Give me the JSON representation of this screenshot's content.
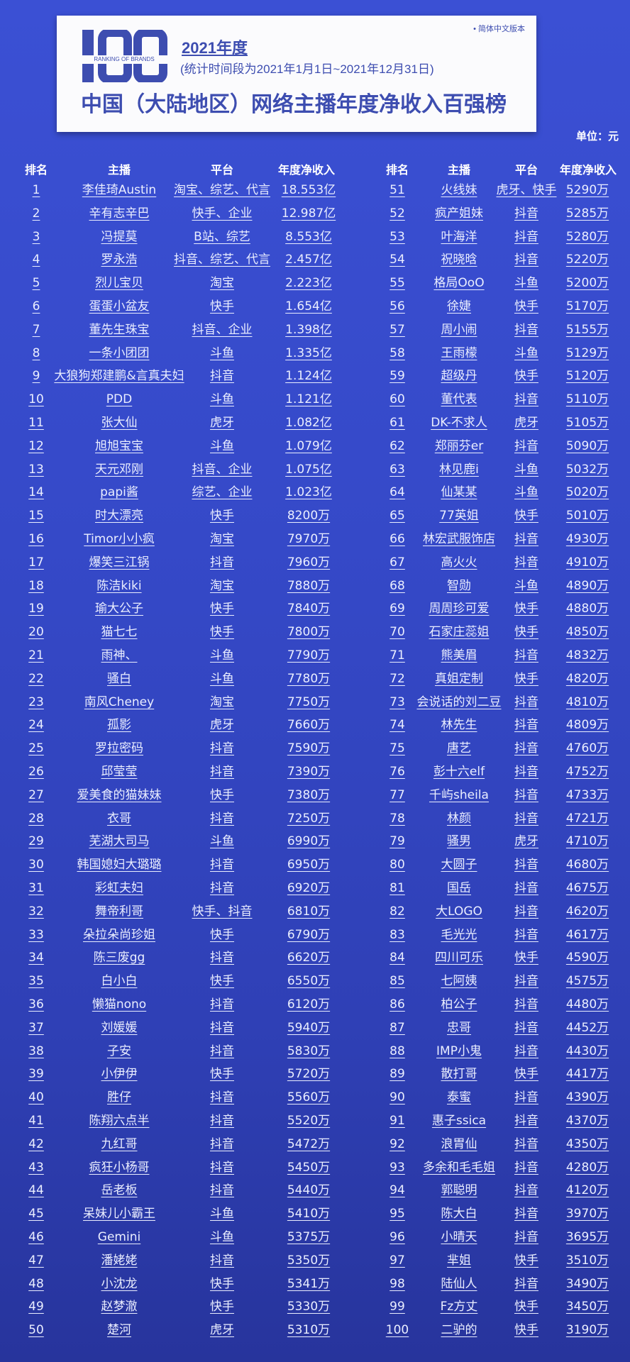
{
  "header": {
    "logo_text": "100",
    "logo_subtext": "RANKING OF BRANDS",
    "year": "2021年度",
    "period": "(统计时间段为2021年1月1日~2021年12月31日)",
    "title": "中国（大陆地区）网络主播年度净收入百强榜",
    "version": "• 简体中文版本",
    "brand_color": "#3d4db0"
  },
  "unit": "单位：元",
  "columns": {
    "rank": "排名",
    "name": "主播",
    "platform": "平台",
    "income": "年度净收入"
  },
  "rows": [
    [
      "1",
      "李佳琦Austin",
      "淘宝、综艺、代言",
      "18.553亿"
    ],
    [
      "2",
      "辛有志辛巴",
      "快手、企业",
      "12.987亿"
    ],
    [
      "3",
      "冯提莫",
      "B站、综艺",
      "8.553亿"
    ],
    [
      "4",
      "罗永浩",
      "抖音、综艺、代言",
      "2.457亿"
    ],
    [
      "5",
      "烈儿宝贝",
      "淘宝",
      "2.223亿"
    ],
    [
      "6",
      "蛋蛋小盆友",
      "快手",
      "1.654亿"
    ],
    [
      "7",
      "董先生珠宝",
      "抖音、企业",
      "1.398亿"
    ],
    [
      "8",
      "一条小团团",
      "斗鱼",
      "1.335亿"
    ],
    [
      "9",
      "大狼狗郑建鹏&言真夫妇",
      "抖音",
      "1.124亿"
    ],
    [
      "10",
      "PDD",
      "斗鱼",
      "1.121亿"
    ],
    [
      "11",
      "张大仙",
      "虎牙",
      "1.082亿"
    ],
    [
      "12",
      "旭旭宝宝",
      "斗鱼",
      "1.079亿"
    ],
    [
      "13",
      "天元邓刚",
      "抖音、企业",
      "1.075亿"
    ],
    [
      "14",
      "papi酱",
      "综艺、企业",
      "1.023亿"
    ],
    [
      "15",
      "时大漂亮",
      "快手",
      "8200万"
    ],
    [
      "16",
      "Timor小小疯",
      "淘宝",
      "7970万"
    ],
    [
      "17",
      "爆笑三江锅",
      "抖音",
      "7960万"
    ],
    [
      "18",
      "陈洁kiki",
      "淘宝",
      "7880万"
    ],
    [
      "19",
      "瑜大公子",
      "快手",
      "7840万"
    ],
    [
      "20",
      "猫七七",
      "快手",
      "7800万"
    ],
    [
      "21",
      "雨神、",
      "斗鱼",
      "7790万"
    ],
    [
      "22",
      "骚白",
      "斗鱼",
      "7780万"
    ],
    [
      "23",
      "南风Cheney",
      "淘宝",
      "7750万"
    ],
    [
      "24",
      "孤影",
      "虎牙",
      "7660万"
    ],
    [
      "25",
      "罗拉密码",
      "抖音",
      "7590万"
    ],
    [
      "26",
      "邱莹莹",
      "抖音",
      "7390万"
    ],
    [
      "27",
      "爱美食的猫妹妹",
      "快手",
      "7380万"
    ],
    [
      "28",
      "衣哥",
      "抖音",
      "7250万"
    ],
    [
      "29",
      "芜湖大司马",
      "斗鱼",
      "6990万"
    ],
    [
      "30",
      "韩国媳妇大璐璐",
      "抖音",
      "6950万"
    ],
    [
      "31",
      "彩虹夫妇",
      "抖音",
      "6920万"
    ],
    [
      "32",
      "舞帝利哥",
      "快手、抖音",
      "6810万"
    ],
    [
      "33",
      "朵拉朵尚珍姐",
      "快手",
      "6790万"
    ],
    [
      "34",
      "陈三废gg",
      "抖音",
      "6620万"
    ],
    [
      "35",
      "白小白",
      "快手",
      "6550万"
    ],
    [
      "36",
      "懒猫nono",
      "抖音",
      "6120万"
    ],
    [
      "37",
      "刘媛媛",
      "抖音",
      "5940万"
    ],
    [
      "38",
      "子安",
      "抖音",
      "5830万"
    ],
    [
      "39",
      "小伊伊",
      "快手",
      "5720万"
    ],
    [
      "40",
      "胜仔",
      "抖音",
      "5560万"
    ],
    [
      "41",
      "陈翔六点半",
      "抖音",
      "5520万"
    ],
    [
      "42",
      "九红哥",
      "抖音",
      "5472万"
    ],
    [
      "43",
      "疯狂小杨哥",
      "抖音",
      "5450万"
    ],
    [
      "44",
      "岳老板",
      "抖音",
      "5440万"
    ],
    [
      "45",
      "呆妹儿小霸王",
      "斗鱼",
      "5410万"
    ],
    [
      "46",
      "Gemini",
      "斗鱼",
      "5375万"
    ],
    [
      "47",
      "潘姥姥",
      "抖音",
      "5350万"
    ],
    [
      "48",
      "小沈龙",
      "快手",
      "5341万"
    ],
    [
      "49",
      "赵梦澈",
      "快手",
      "5330万"
    ],
    [
      "50",
      "楚河",
      "虎牙",
      "5310万"
    ],
    [
      "51",
      "火线妹",
      "虎牙、快手",
      "5290万"
    ],
    [
      "52",
      "疯产姐妹",
      "抖音",
      "5285万"
    ],
    [
      "53",
      "叶海洋",
      "抖音",
      "5280万"
    ],
    [
      "54",
      "祝晓晗",
      "抖音",
      "5220万"
    ],
    [
      "55",
      "格局OoO",
      "斗鱼",
      "5200万"
    ],
    [
      "56",
      "徐婕",
      "快手",
      "5170万"
    ],
    [
      "57",
      "周小闹",
      "抖音",
      "5155万"
    ],
    [
      "58",
      "王雨檬",
      "斗鱼",
      "5129万"
    ],
    [
      "59",
      "超级丹",
      "快手",
      "5120万"
    ],
    [
      "60",
      "董代表",
      "抖音",
      "5110万"
    ],
    [
      "61",
      "DK-不求人",
      "虎牙",
      "5105万"
    ],
    [
      "62",
      "郑丽芬er",
      "抖音",
      "5090万"
    ],
    [
      "63",
      "林见鹿i",
      "斗鱼",
      "5032万"
    ],
    [
      "64",
      "仙某某",
      "斗鱼",
      "5020万"
    ],
    [
      "65",
      "77英姐",
      "快手",
      "5010万"
    ],
    [
      "66",
      "林宏武服饰店",
      "抖音",
      "4930万"
    ],
    [
      "67",
      "高火火",
      "抖音",
      "4910万"
    ],
    [
      "68",
      "智勋",
      "斗鱼",
      "4890万"
    ],
    [
      "69",
      "周周珍可爱",
      "快手",
      "4880万"
    ],
    [
      "70",
      "石家庄蕊姐",
      "快手",
      "4850万"
    ],
    [
      "71",
      "熊美眉",
      "抖音",
      "4832万"
    ],
    [
      "72",
      "真姐定制",
      "快手",
      "4820万"
    ],
    [
      "73",
      "会说话的刘二豆",
      "抖音",
      "4810万"
    ],
    [
      "74",
      "林先生",
      "抖音",
      "4809万"
    ],
    [
      "75",
      "唐艺",
      "抖音",
      "4760万"
    ],
    [
      "76",
      "彭十六elf",
      "抖音",
      "4752万"
    ],
    [
      "77",
      "千屿sheila",
      "抖音",
      "4733万"
    ],
    [
      "78",
      "林颜",
      "抖音",
      "4721万"
    ],
    [
      "79",
      "骚男",
      "虎牙",
      "4710万"
    ],
    [
      "80",
      "大圆子",
      "抖音",
      "4680万"
    ],
    [
      "81",
      "国岳",
      "抖音",
      "4675万"
    ],
    [
      "82",
      "大LOGO",
      "抖音",
      "4620万"
    ],
    [
      "83",
      "毛光光",
      "抖音",
      "4617万"
    ],
    [
      "84",
      "四川可乐",
      "快手",
      "4590万"
    ],
    [
      "85",
      "七阿姨",
      "抖音",
      "4575万"
    ],
    [
      "86",
      "柏公子",
      "抖音",
      "4480万"
    ],
    [
      "87",
      "忠哥",
      "抖音",
      "4452万"
    ],
    [
      "88",
      "IMP小鬼",
      "抖音",
      "4430万"
    ],
    [
      "89",
      "散打哥",
      "快手",
      "4417万"
    ],
    [
      "90",
      "泰蜜",
      "抖音",
      "4390万"
    ],
    [
      "91",
      "惠子ssica",
      "抖音",
      "4370万"
    ],
    [
      "92",
      "浪胃仙",
      "抖音",
      "4350万"
    ],
    [
      "93",
      "多余和毛毛姐",
      "抖音",
      "4280万"
    ],
    [
      "94",
      "郭聪明",
      "抖音",
      "4120万"
    ],
    [
      "95",
      "陈大白",
      "抖音",
      "3970万"
    ],
    [
      "96",
      "小晴天",
      "抖音",
      "3695万"
    ],
    [
      "97",
      "芈姐",
      "快手",
      "3510万"
    ],
    [
      "98",
      "陆仙人",
      "抖音",
      "3490万"
    ],
    [
      "99",
      "Fz方丈",
      "快手",
      "3450万"
    ],
    [
      "100",
      "二驴的",
      "快手",
      "3190万"
    ]
  ]
}
